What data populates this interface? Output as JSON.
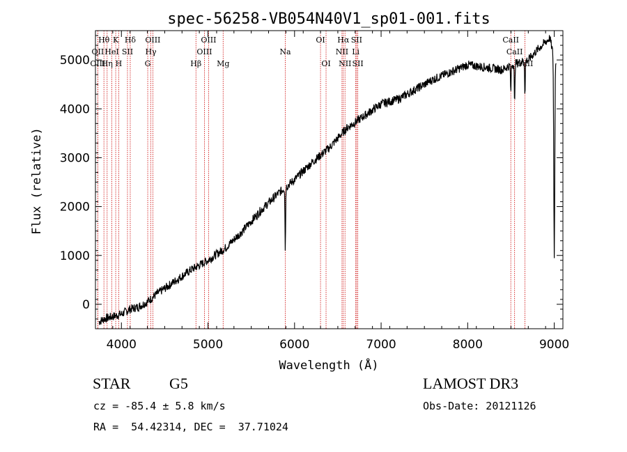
{
  "chart_data": {
    "type": "line",
    "title": "spec-56258-VB054N40V1_sp01-001.fits",
    "xlabel": "Wavelength (Å)",
    "ylabel": "Flux (relative)",
    "xlim": [
      3700,
      9100
    ],
    "ylim": [
      -500,
      5600
    ],
    "xticks": [
      4000,
      5000,
      6000,
      7000,
      8000,
      9000
    ],
    "yticks": [
      0,
      1000,
      2000,
      3000,
      4000,
      5000
    ],
    "spectrum_anchors": {
      "x": [
        3700,
        3800,
        3900,
        4000,
        4100,
        4200,
        4300,
        4400,
        4600,
        4800,
        5000,
        5200,
        5400,
        5600,
        5800,
        5900,
        6000,
        6200,
        6400,
        6600,
        6800,
        7000,
        7200,
        7400,
        7600,
        7800,
        8000,
        8200,
        8400,
        8500,
        8700,
        8800,
        8950,
        9000
      ],
      "y": [
        -400,
        -300,
        -250,
        -200,
        -100,
        -50,
        50,
        200,
        450,
        700,
        900,
        1150,
        1500,
        1900,
        2250,
        2400,
        2550,
        2900,
        3200,
        3600,
        3850,
        4100,
        4200,
        4400,
        4600,
        4750,
        4900,
        4850,
        4800,
        4900,
        5000,
        5200,
        5450,
        5000
      ]
    },
    "absorption_features": [
      {
        "x": 5893,
        "depth": 1300
      },
      {
        "x": 8498,
        "depth": 600
      },
      {
        "x": 8542,
        "depth": 900
      },
      {
        "x": 8662,
        "depth": 700
      },
      {
        "x": 9000,
        "depth": 4000
      }
    ],
    "lines": [
      {
        "name": "Hθ",
        "x": 3798,
        "row": 0
      },
      {
        "name": "OII",
        "x": 3727,
        "row": 1
      },
      {
        "name": "OIII",
        "x": 3727,
        "row": 2
      },
      {
        "name": "K",
        "x": 3934,
        "row": 0
      },
      {
        "name": "HeI",
        "x": 3889,
        "row": 1
      },
      {
        "name": "Hη",
        "x": 3835,
        "row": 2
      },
      {
        "name": "Hδ",
        "x": 4102,
        "row": 0
      },
      {
        "name": "SII",
        "x": 4070,
        "row": 1
      },
      {
        "name": "H",
        "x": 3969,
        "row": 2
      },
      {
        "name": "OIII",
        "x": 4363,
        "row": 0
      },
      {
        "name": "Hγ",
        "x": 4340,
        "row": 1
      },
      {
        "name": "G",
        "x": 4304,
        "row": 2
      },
      {
        "name": "OIII",
        "x": 5007,
        "row": 0
      },
      {
        "name": "OIII",
        "x": 4959,
        "row": 1
      },
      {
        "name": "Hβ",
        "x": 4861,
        "row": 2
      },
      {
        "name": "Mg",
        "x": 5175,
        "row": 2
      },
      {
        "name": "Na",
        "x": 5893,
        "row": 1
      },
      {
        "name": "OI",
        "x": 6300,
        "row": 0
      },
      {
        "name": "OI",
        "x": 6364,
        "row": 2
      },
      {
        "name": "Hα",
        "x": 6563,
        "row": 0
      },
      {
        "name": "SII",
        "x": 6717,
        "row": 0
      },
      {
        "name": "NII",
        "x": 6548,
        "row": 1
      },
      {
        "name": "Li",
        "x": 6707,
        "row": 1
      },
      {
        "name": "NII",
        "x": 6583,
        "row": 2
      },
      {
        "name": "SII",
        "x": 6731,
        "row": 2
      },
      {
        "name": "CaII",
        "x": 8498,
        "row": 0
      },
      {
        "name": "CaII",
        "x": 8542,
        "row": 1
      },
      {
        "name": "CaII",
        "x": 8662,
        "row": 2
      }
    ],
    "line_color": "#cc0000",
    "spectrum_color": "#000000"
  },
  "info": {
    "class": "STAR",
    "subclass": "G5",
    "survey": "LAMOST DR3",
    "cz": "cz = -85.4 ± 5.8 km/s",
    "obs_date": "Obs-Date: 20121126",
    "coords": "RA =  54.42314, DEC =  37.71024"
  }
}
